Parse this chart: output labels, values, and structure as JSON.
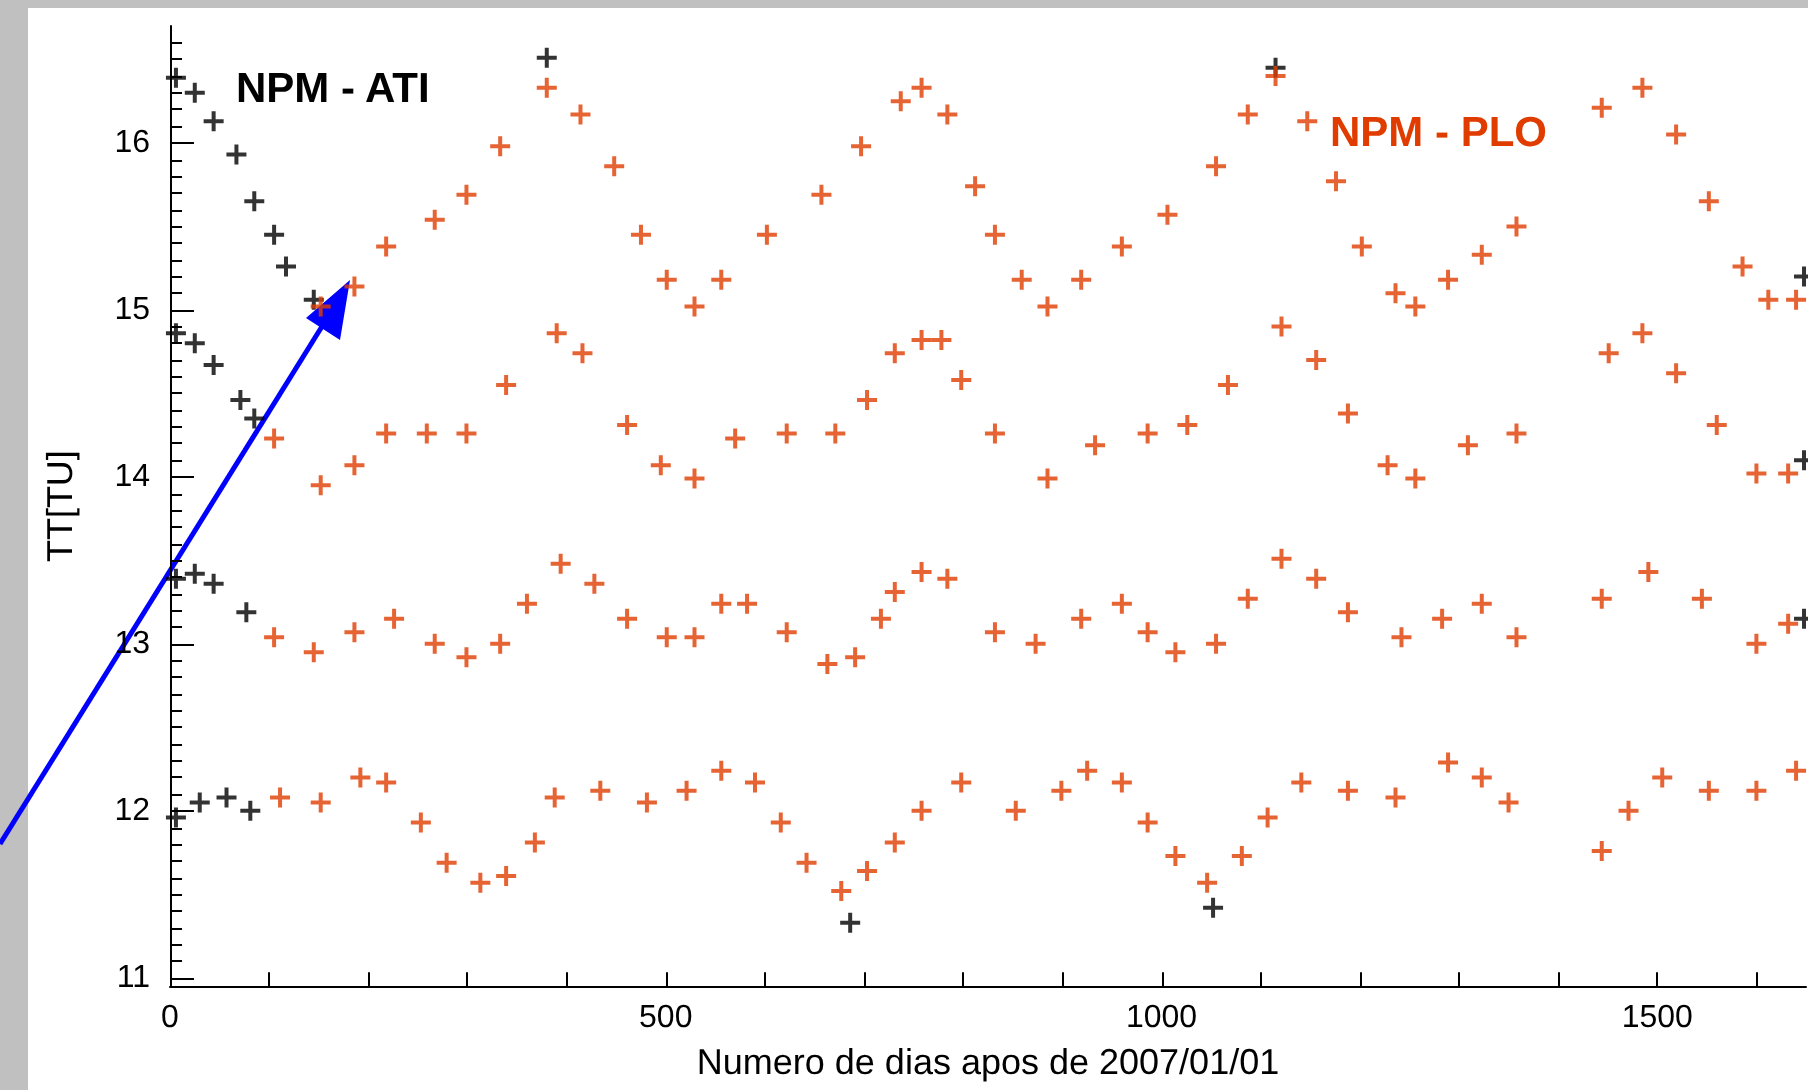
{
  "chart_data": {
    "type": "scatter",
    "xlabel": "Numero de dias apos de 2007/01/01",
    "ylabel": "TT[TU]",
    "xlim": [
      0,
      1650
    ],
    "ylim": [
      10.95,
      16.7
    ],
    "xticks": [
      0,
      {
        "value": 100,
        "label": null
      },
      {
        "value": 200,
        "label": null
      },
      {
        "value": 300,
        "label": null
      },
      {
        "value": 400,
        "label": null
      },
      500,
      {
        "value": 600,
        "label": null
      },
      {
        "value": 700,
        "label": null
      },
      {
        "value": 800,
        "label": null
      },
      {
        "value": 900,
        "label": null
      },
      1000,
      {
        "value": 1100,
        "label": null
      },
      {
        "value": 1200,
        "label": null
      },
      {
        "value": 1300,
        "label": null
      },
      {
        "value": 1400,
        "label": null
      },
      1500,
      {
        "value": 1600,
        "label": null
      }
    ],
    "yticks": [
      11,
      12,
      13,
      14,
      15,
      16
    ],
    "marker": "cross",
    "grid": false,
    "legend": false,
    "series": [
      {
        "name": "NPM - PLO",
        "color": "#e03c00",
        "x": [
          152,
          186,
          218,
          267,
          299,
          333,
          380,
          414,
          448,
          475,
          501,
          529,
          556,
          602,
          657,
          697,
          737,
          758,
          784,
          812,
          832,
          859,
          885,
          919,
          960,
          1006,
          1055,
          1087,
          1115,
          1147,
          1176,
          1202,
          1236,
          1256,
          1289,
          1323,
          1358,
          1444,
          1485,
          1519,
          1552,
          1586,
          1612,
          1640,
          105,
          152,
          186,
          218,
          259,
          299,
          339,
          390,
          416,
          461,
          495,
          529,
          570,
          622,
          671,
          703,
          731,
          758,
          778,
          798,
          832,
          885,
          933,
          986,
          1026,
          1067,
          1121,
          1156,
          1188,
          1228,
          1256,
          1309,
          1358,
          1451,
          1485,
          1519,
          1560,
          1600,
          1632,
          105,
          145,
          186,
          226,
          267,
          299,
          333,
          360,
          394,
          428,
          461,
          501,
          529,
          556,
          582,
          622,
          663,
          691,
          717,
          731,
          758,
          784,
          832,
          873,
          919,
          960,
          986,
          1014,
          1055,
          1087,
          1121,
          1156,
          1188,
          1242,
          1283,
          1323,
          1358,
          1444,
          1491,
          1545,
          1600,
          1632,
          111,
          152,
          192,
          218,
          253,
          279,
          313,
          339,
          368,
          388,
          434,
          481,
          521,
          556,
          590,
          616,
          642,
          677,
          703,
          731,
          758,
          798,
          853,
          899,
          925,
          960,
          986,
          1014,
          1046,
          1081,
          1107,
          1141,
          1188,
          1236,
          1289,
          1323,
          1350,
          1444,
          1471,
          1505,
          1552,
          1600,
          1640
        ],
        "values": [
          15.02,
          15.14,
          15.38,
          15.54,
          15.69,
          15.98,
          16.33,
          16.17,
          15.86,
          15.45,
          15.18,
          15.02,
          15.18,
          15.45,
          15.69,
          15.98,
          16.25,
          16.33,
          16.17,
          15.74,
          15.45,
          15.18,
          15.02,
          15.18,
          15.38,
          15.57,
          15.86,
          16.17,
          16.4,
          16.13,
          15.77,
          15.38,
          15.1,
          15.02,
          15.18,
          15.33,
          15.5,
          16.21,
          16.33,
          16.05,
          15.65,
          15.26,
          15.06,
          15.06,
          14.23,
          13.95,
          14.07,
          14.26,
          14.26,
          14.26,
          14.55,
          14.86,
          14.74,
          14.31,
          14.07,
          13.99,
          14.23,
          14.26,
          14.26,
          14.46,
          14.74,
          14.82,
          14.82,
          14.58,
          14.26,
          13.99,
          14.19,
          14.26,
          14.31,
          14.55,
          14.9,
          14.7,
          14.38,
          14.07,
          13.99,
          14.19,
          14.26,
          14.74,
          14.86,
          14.62,
          14.31,
          14.02,
          14.02,
          13.04,
          12.95,
          13.07,
          13.15,
          13.0,
          12.92,
          13.0,
          13.24,
          13.48,
          13.36,
          13.15,
          13.04,
          13.04,
          13.24,
          13.24,
          13.07,
          12.88,
          12.92,
          13.15,
          13.31,
          13.43,
          13.39,
          13.07,
          13.0,
          13.15,
          13.24,
          13.07,
          12.95,
          13.0,
          13.27,
          13.51,
          13.39,
          13.19,
          13.04,
          13.15,
          13.24,
          13.04,
          13.27,
          13.43,
          13.27,
          13.0,
          13.12,
          12.08,
          12.05,
          12.2,
          12.17,
          11.93,
          11.69,
          11.57,
          11.61,
          11.81,
          12.08,
          12.12,
          12.05,
          12.12,
          12.24,
          12.17,
          11.93,
          11.69,
          11.52,
          11.64,
          11.81,
          12.0,
          12.17,
          12.0,
          12.12,
          12.24,
          12.17,
          11.93,
          11.73,
          11.57,
          11.73,
          11.96,
          12.17,
          12.12,
          12.08,
          12.29,
          12.2,
          12.05,
          11.76,
          12.0,
          12.2,
          12.12,
          12.12,
          12.24
        ]
      },
      {
        "name": "NPM - ATI",
        "color": "#000000",
        "x": [
          6,
          25,
          44,
          67,
          85,
          105,
          117,
          145,
          380,
          1115,
          1648,
          6,
          25,
          44,
          71,
          85,
          1648,
          6,
          25,
          44,
          77,
          1648,
          6,
          30,
          57,
          81,
          686,
          1052
        ],
        "values": [
          16.39,
          16.3,
          16.13,
          15.93,
          15.65,
          15.45,
          15.26,
          15.06,
          16.51,
          16.45,
          15.2,
          14.86,
          14.8,
          14.67,
          14.46,
          14.35,
          14.1,
          13.39,
          13.42,
          13.36,
          13.19,
          13.15,
          11.96,
          12.05,
          12.08,
          12.0,
          11.33,
          11.42
        ]
      }
    ]
  }
}
